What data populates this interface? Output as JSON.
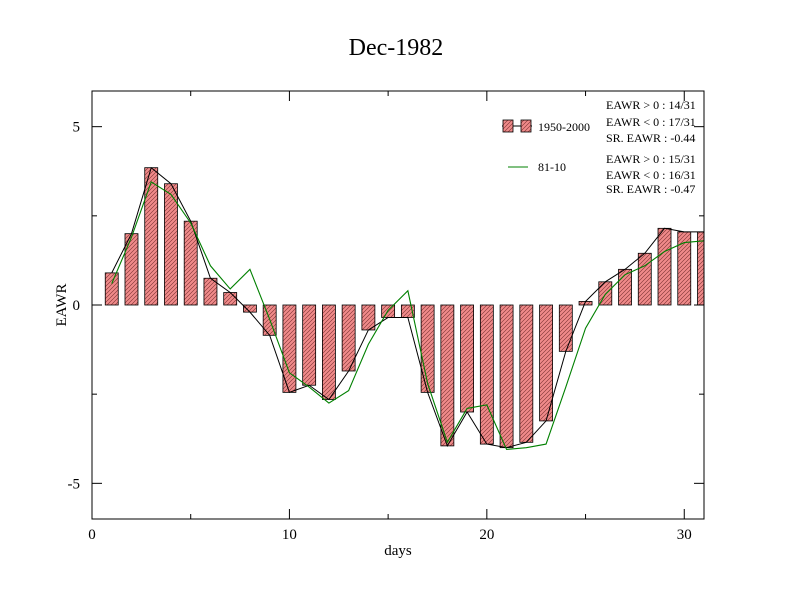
{
  "chart_data": {
    "type": "bar",
    "title": "Dec-1982",
    "xlabel": "days",
    "ylabel": "EAWR",
    "xlim": [
      0,
      31
    ],
    "ylim": [
      -6,
      6
    ],
    "x_ticks": [
      0,
      10,
      20,
      30
    ],
    "y_ticks": [
      -5,
      0,
      5
    ],
    "grid": false,
    "legend_position": "top-right",
    "x": [
      1,
      2,
      3,
      4,
      5,
      6,
      7,
      8,
      9,
      10,
      11,
      12,
      13,
      14,
      15,
      16,
      17,
      18,
      19,
      20,
      21,
      22,
      23,
      24,
      25,
      26,
      27,
      28,
      29,
      30,
      31
    ],
    "series": [
      {
        "name": "1950-2000",
        "kind": "bar",
        "values": [
          0.9,
          2.0,
          3.85,
          3.4,
          2.35,
          0.75,
          0.35,
          -0.2,
          -0.85,
          -2.45,
          -2.25,
          -2.65,
          -1.85,
          -0.7,
          -0.35,
          -0.35,
          -2.45,
          -3.95,
          -3.0,
          -3.9,
          -4.0,
          -3.85,
          -3.25,
          -1.3,
          0.1,
          0.65,
          1.0,
          1.45,
          2.15,
          2.05,
          2.05
        ],
        "color": "#f08a8a",
        "stats": [
          "EAWR > 0 : 14/31",
          "EAWR < 0 : 17/31",
          "SR. EAWR : -0.44"
        ]
      },
      {
        "name": "81-10",
        "kind": "line",
        "values": [
          0.6,
          1.9,
          3.45,
          3.1,
          2.3,
          1.1,
          0.45,
          1.0,
          -0.4,
          -1.9,
          -2.3,
          -2.75,
          -2.4,
          -1.1,
          -0.15,
          0.4,
          -2.2,
          -3.85,
          -2.9,
          -2.8,
          -4.05,
          -4.0,
          -3.9,
          -2.3,
          -0.65,
          0.3,
          0.85,
          1.1,
          1.5,
          1.75,
          1.8
        ],
        "color": "#008000",
        "stats": [
          "EAWR > 0 : 15/31",
          "EAWR < 0 : 16/31",
          "SR. EAWR : -0.47"
        ]
      }
    ]
  }
}
